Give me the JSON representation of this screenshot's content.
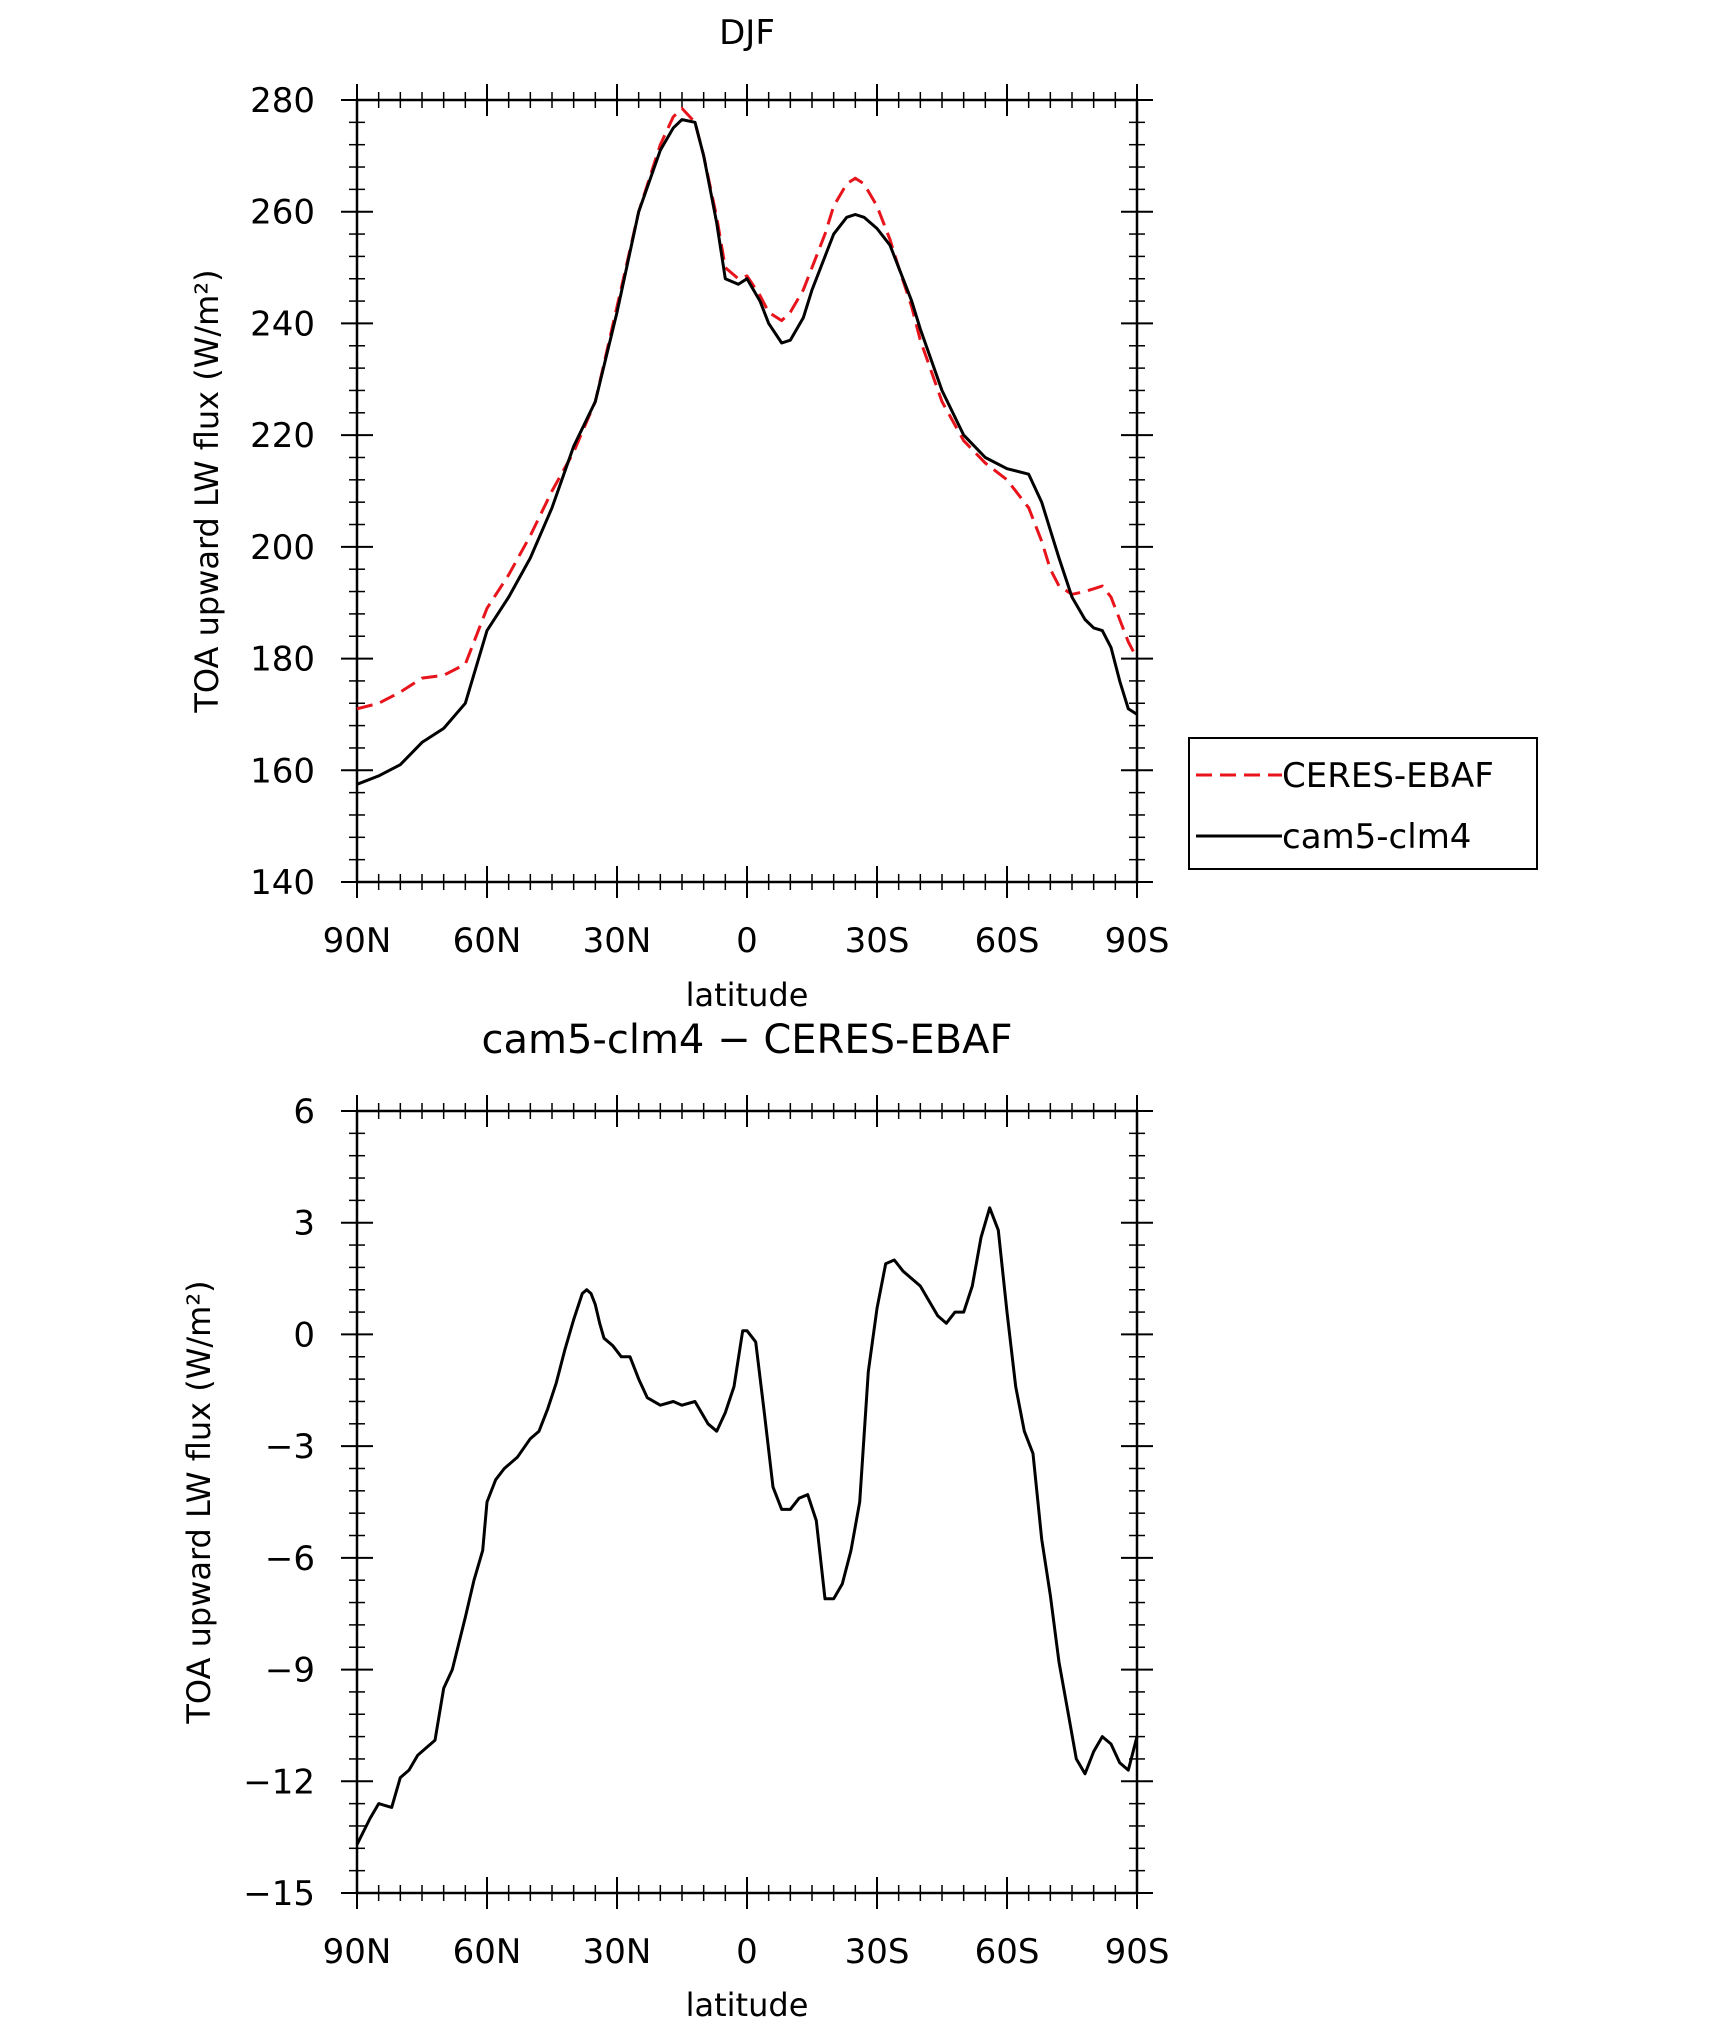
{
  "chart_data": [
    {
      "type": "line",
      "title": "DJF",
      "xlabel": "latitude",
      "ylabel": "TOA upward LW flux (W/m²)",
      "ylim": [
        140,
        280
      ],
      "yticks": [
        140,
        160,
        180,
        200,
        220,
        240,
        260,
        280
      ],
      "xlim": [
        90,
        -90
      ],
      "xticks": [
        {
          "value": 90,
          "label": "90N"
        },
        {
          "value": 60,
          "label": "60N"
        },
        {
          "value": 30,
          "label": "30N"
        },
        {
          "value": 0,
          "label": "0"
        },
        {
          "value": -30,
          "label": "30S"
        },
        {
          "value": -60,
          "label": "60S"
        },
        {
          "value": -90,
          "label": "90S"
        }
      ],
      "legend": {
        "placement": "right",
        "entries": [
          "CERES-EBAF",
          "cam5-clm4"
        ]
      },
      "colors": {
        "CERES-EBAF": "#e8141c",
        "cam5-clm4": "#000000"
      },
      "x": [
        90,
        85,
        80,
        75,
        70,
        65,
        60,
        55,
        50,
        45,
        40,
        35,
        30,
        25,
        20,
        17,
        15,
        12,
        10,
        7,
        5,
        2,
        0,
        -3,
        -5,
        -8,
        -10,
        -13,
        -15,
        -18,
        -20,
        -23,
        -25,
        -27,
        -30,
        -33,
        -35,
        -38,
        -40,
        -45,
        -50,
        -55,
        -60,
        -65,
        -68,
        -70,
        -72,
        -75,
        -78,
        -80,
        -82,
        -84,
        -86,
        -88,
        -90
      ],
      "series": [
        {
          "name": "CERES-EBAF",
          "values": [
            171,
            172,
            174,
            176.5,
            177,
            179,
            189,
            195,
            202,
            210,
            217,
            226,
            243,
            260,
            272,
            277,
            278.5,
            276,
            270,
            259,
            250,
            248,
            248.5,
            245,
            242,
            240.5,
            242,
            246,
            250,
            256,
            261,
            265,
            266,
            265,
            261,
            255,
            250,
            243,
            237,
            226,
            219,
            215,
            212,
            207,
            201,
            196,
            193,
            191.5,
            192,
            192.5,
            193,
            191,
            187,
            183,
            180
          ],
          "dash": true
        },
        {
          "name": "cam5-clm4",
          "values": [
            157.5,
            159,
            161,
            165,
            167.5,
            172,
            185,
            191,
            198,
            207,
            218,
            226,
            242,
            260,
            271,
            275,
            276.5,
            276,
            270,
            258,
            248,
            247,
            248,
            244,
            240,
            236.5,
            237,
            241,
            246,
            252,
            256,
            259,
            259.5,
            259,
            257,
            254,
            250,
            244,
            239,
            228,
            220,
            216,
            214,
            213,
            208,
            203,
            198,
            191,
            187,
            185.5,
            185,
            182,
            176,
            171,
            170
          ]
        }
      ]
    },
    {
      "type": "line",
      "title": "cam5-clm4 − CERES-EBAF",
      "xlabel": "latitude",
      "ylabel": "TOA upward LW flux (W/m²)",
      "ylim": [
        -15,
        6
      ],
      "yticks": [
        -15,
        -12,
        -9,
        -6,
        -3,
        0,
        3,
        6
      ],
      "xlim": [
        90,
        -90
      ],
      "xticks": [
        {
          "value": 90,
          "label": "90N"
        },
        {
          "value": 60,
          "label": "60N"
        },
        {
          "value": 30,
          "label": "30N"
        },
        {
          "value": 0,
          "label": "0"
        },
        {
          "value": -30,
          "label": "30S"
        },
        {
          "value": -60,
          "label": "60S"
        },
        {
          "value": -90,
          "label": "90S"
        }
      ],
      "colors": {
        "line": "#000000"
      },
      "series": [
        {
          "x": [
            90,
            87,
            85,
            82,
            80,
            78,
            76,
            74,
            72,
            70,
            68,
            65,
            63,
            61,
            60,
            58,
            56,
            53,
            50,
            48,
            46,
            44,
            42,
            40,
            38,
            37,
            36,
            35,
            34,
            33,
            31,
            29,
            27,
            25,
            23,
            20,
            17,
            15,
            12,
            9,
            7,
            5,
            3,
            1,
            0,
            -2,
            -4,
            -6,
            -8,
            -10,
            -12,
            -14,
            -16,
            -18,
            -20,
            -22,
            -24,
            -26,
            -28,
            -30,
            -32,
            -34,
            -36,
            -38,
            -40,
            -42,
            -44,
            -46,
            -48,
            -50,
            -52,
            -54,
            -56,
            -58,
            -60,
            -62,
            -64,
            -66,
            -68,
            -70,
            -72,
            -74,
            -76,
            -78,
            -80,
            -82,
            -84,
            -86,
            -88,
            -90
          ],
          "values": [
            -13.7,
            -13,
            -12.6,
            -12.7,
            -11.9,
            -11.7,
            -11.3,
            -11.1,
            -10.9,
            -9.5,
            -9,
            -7.6,
            -6.6,
            -5.8,
            -4.5,
            -3.9,
            -3.6,
            -3.3,
            -2.8,
            -2.6,
            -2,
            -1.3,
            -0.4,
            0.4,
            1.1,
            1.2,
            1.1,
            0.8,
            0.3,
            -0.1,
            -0.3,
            -0.6,
            -0.6,
            -1.2,
            -1.7,
            -1.9,
            -1.8,
            -1.9,
            -1.8,
            -2.4,
            -2.6,
            -2.1,
            -1.4,
            0.1,
            0.1,
            -0.2,
            -2.1,
            -4.1,
            -4.7,
            -4.7,
            -4.4,
            -4.3,
            -5,
            -7.1,
            -7.1,
            -6.7,
            -5.8,
            -4.5,
            -1,
            0.7,
            1.9,
            2,
            1.7,
            1.5,
            1.3,
            0.9,
            0.5,
            0.3,
            0.6,
            0.6,
            1.3,
            2.6,
            3.4,
            2.8,
            0.6,
            -1.4,
            -2.6,
            -3.2,
            -5.5,
            -7,
            -8.8,
            -10.1,
            -11.4,
            -11.8,
            -11.2,
            -10.8,
            -11,
            -11.5,
            -11.7,
            -10.8
          ]
        }
      ]
    }
  ]
}
